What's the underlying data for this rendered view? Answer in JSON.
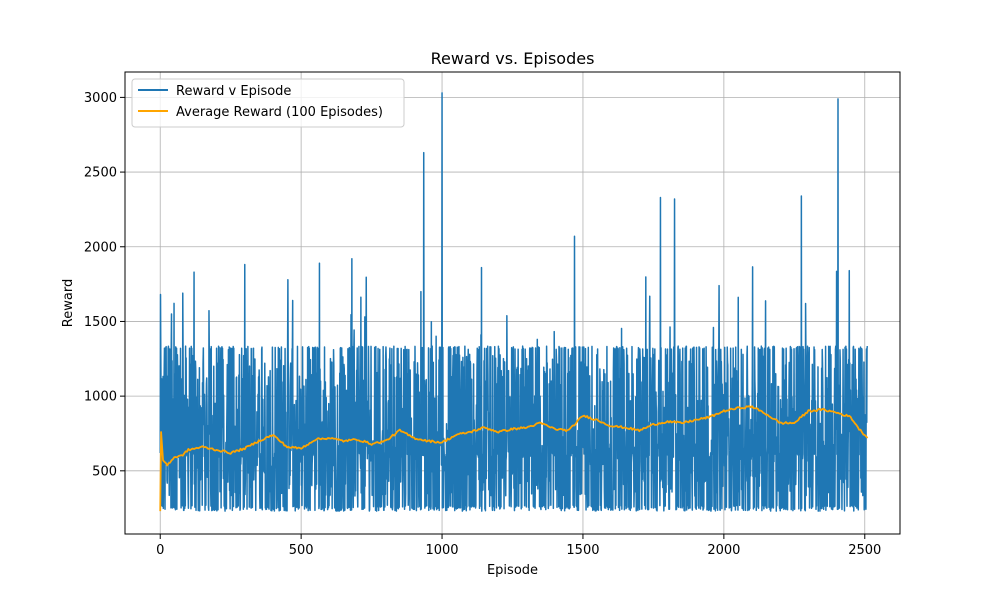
{
  "chart_data": {
    "type": "line",
    "title": "Reward vs. Episodes",
    "xlabel": "Episode",
    "ylabel": "Reward",
    "xlim": [
      -125,
      2625
    ],
    "ylim": [
      77,
      3170
    ],
    "xticks": [
      0,
      500,
      1000,
      1500,
      2000,
      2500
    ],
    "yticks": [
      500,
      1000,
      1500,
      2000,
      2500,
      3000
    ],
    "grid": true,
    "legend_position": "top-left",
    "episodes": 2510,
    "series": [
      {
        "name": "Reward v Episode",
        "color": "#1f77b4",
        "baseline_range": [
          230,
          1330
        ],
        "spikes": [
          {
            "x": 1,
            "y": 1680
          },
          {
            "x": 40,
            "y": 1550
          },
          {
            "x": 80,
            "y": 1690
          },
          {
            "x": 120,
            "y": 1830
          },
          {
            "x": 470,
            "y": 1640
          },
          {
            "x": 565,
            "y": 1890
          },
          {
            "x": 680,
            "y": 1920
          },
          {
            "x": 925,
            "y": 1700
          },
          {
            "x": 935,
            "y": 2630
          },
          {
            "x": 1000,
            "y": 3030
          },
          {
            "x": 1140,
            "y": 1860
          },
          {
            "x": 1470,
            "y": 2070
          },
          {
            "x": 1775,
            "y": 2330
          },
          {
            "x": 1825,
            "y": 2320
          },
          {
            "x": 2275,
            "y": 2340
          },
          {
            "x": 2405,
            "y": 2990
          },
          {
            "x": 2445,
            "y": 1840
          }
        ]
      },
      {
        "name": "Average Reward (100 Episodes)",
        "color": "#ffa500",
        "points": [
          [
            0,
            230
          ],
          [
            3,
            760
          ],
          [
            10,
            570
          ],
          [
            25,
            540
          ],
          [
            50,
            590
          ],
          [
            75,
            600
          ],
          [
            100,
            640
          ],
          [
            150,
            660
          ],
          [
            200,
            640
          ],
          [
            250,
            620
          ],
          [
            300,
            650
          ],
          [
            350,
            700
          ],
          [
            400,
            740
          ],
          [
            450,
            660
          ],
          [
            500,
            650
          ],
          [
            550,
            710
          ],
          [
            600,
            720
          ],
          [
            650,
            700
          ],
          [
            700,
            710
          ],
          [
            750,
            680
          ],
          [
            800,
            700
          ],
          [
            850,
            770
          ],
          [
            900,
            720
          ],
          [
            950,
            700
          ],
          [
            1000,
            690
          ],
          [
            1050,
            740
          ],
          [
            1100,
            760
          ],
          [
            1150,
            790
          ],
          [
            1200,
            760
          ],
          [
            1250,
            780
          ],
          [
            1300,
            790
          ],
          [
            1350,
            820
          ],
          [
            1400,
            780
          ],
          [
            1450,
            770
          ],
          [
            1500,
            870
          ],
          [
            1550,
            840
          ],
          [
            1600,
            800
          ],
          [
            1650,
            790
          ],
          [
            1700,
            770
          ],
          [
            1750,
            810
          ],
          [
            1800,
            830
          ],
          [
            1850,
            820
          ],
          [
            1900,
            840
          ],
          [
            1950,
            860
          ],
          [
            2000,
            900
          ],
          [
            2050,
            920
          ],
          [
            2100,
            930
          ],
          [
            2150,
            880
          ],
          [
            2200,
            820
          ],
          [
            2250,
            820
          ],
          [
            2300,
            900
          ],
          [
            2350,
            910
          ],
          [
            2400,
            890
          ],
          [
            2450,
            860
          ],
          [
            2480,
            780
          ],
          [
            2500,
            740
          ],
          [
            2510,
            720
          ]
        ]
      }
    ]
  }
}
